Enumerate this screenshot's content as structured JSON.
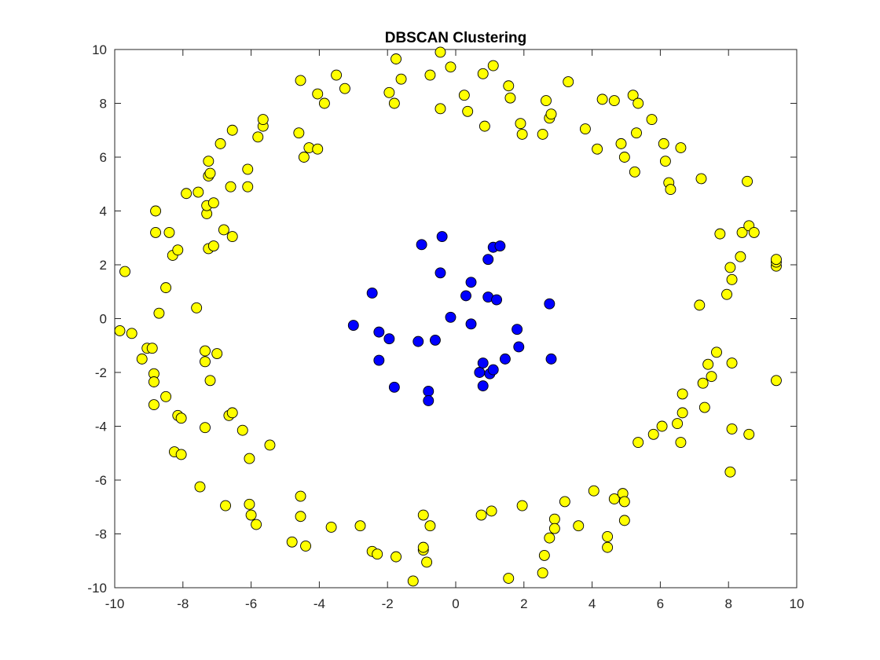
{
  "chart_data": {
    "type": "scatter",
    "title": "DBSCAN Clustering",
    "xlabel": "",
    "ylabel": "",
    "xlim": [
      -10,
      10
    ],
    "ylim": [
      -10,
      10
    ],
    "xticks": [
      -10,
      -8,
      -6,
      -4,
      -2,
      0,
      2,
      4,
      6,
      8,
      10
    ],
    "yticks": [
      -10,
      -8,
      -6,
      -4,
      -2,
      0,
      2,
      4,
      6,
      8,
      10
    ],
    "grid": false,
    "legend": false,
    "series": [
      {
        "color": "#ffff00",
        "points": [
          [
            -9.7,
            1.75
          ],
          [
            -9.85,
            -0.45
          ],
          [
            -9.5,
            -0.55
          ],
          [
            -9.2,
            -1.5
          ],
          [
            -9.05,
            -1.1
          ],
          [
            -8.9,
            -1.1
          ],
          [
            -8.85,
            -2.05
          ],
          [
            -8.85,
            -2.35
          ],
          [
            -8.85,
            -3.2
          ],
          [
            -8.8,
            3.2
          ],
          [
            -8.8,
            4.0
          ],
          [
            -8.7,
            0.2
          ],
          [
            -8.5,
            1.15
          ],
          [
            -8.5,
            -2.9
          ],
          [
            -8.4,
            3.2
          ],
          [
            -8.3,
            2.35
          ],
          [
            -8.25,
            -4.95
          ],
          [
            -8.15,
            2.55
          ],
          [
            -8.15,
            -3.6
          ],
          [
            -8.05,
            -3.7
          ],
          [
            -8.05,
            -5.05
          ],
          [
            -7.9,
            4.65
          ],
          [
            -7.6,
            0.4
          ],
          [
            -7.55,
            4.7
          ],
          [
            -7.5,
            -6.25
          ],
          [
            -7.35,
            -1.2
          ],
          [
            -7.35,
            -1.6
          ],
          [
            -7.35,
            -4.05
          ],
          [
            -7.3,
            3.9
          ],
          [
            -7.3,
            4.2
          ],
          [
            -7.25,
            5.3
          ],
          [
            -7.25,
            5.85
          ],
          [
            -7.2,
            5.4
          ],
          [
            -7.25,
            2.6
          ],
          [
            -7.2,
            -2.3
          ],
          [
            -7.1,
            2.7
          ],
          [
            -7.1,
            4.3
          ],
          [
            -7.0,
            -1.3
          ],
          [
            -6.9,
            6.5
          ],
          [
            -6.8,
            3.3
          ],
          [
            -6.75,
            -6.95
          ],
          [
            -6.65,
            -3.6
          ],
          [
            -6.6,
            4.9
          ],
          [
            -6.55,
            7.0
          ],
          [
            -6.55,
            3.05
          ],
          [
            -6.55,
            -3.5
          ],
          [
            -6.25,
            -4.15
          ],
          [
            -6.1,
            5.55
          ],
          [
            -6.1,
            4.9
          ],
          [
            -6.05,
            -5.2
          ],
          [
            -6.05,
            -6.9
          ],
          [
            -6.0,
            -7.3
          ],
          [
            -5.85,
            -7.65
          ],
          [
            -5.8,
            6.75
          ],
          [
            -5.65,
            7.15
          ],
          [
            -5.65,
            7.4
          ],
          [
            -5.45,
            -4.7
          ],
          [
            -4.8,
            -8.3
          ],
          [
            -4.6,
            6.9
          ],
          [
            -4.55,
            8.85
          ],
          [
            -4.55,
            -6.6
          ],
          [
            -4.55,
            -7.35
          ],
          [
            -4.45,
            6.0
          ],
          [
            -4.4,
            -8.45
          ],
          [
            -4.3,
            6.35
          ],
          [
            -4.05,
            8.35
          ],
          [
            -4.05,
            6.3
          ],
          [
            -3.85,
            8.0
          ],
          [
            -3.65,
            -7.75
          ],
          [
            -3.5,
            9.05
          ],
          [
            -3.25,
            8.55
          ],
          [
            -2.8,
            -7.7
          ],
          [
            -2.45,
            -8.65
          ],
          [
            -2.3,
            -8.75
          ],
          [
            -1.95,
            8.4
          ],
          [
            -1.8,
            8.0
          ],
          [
            -1.75,
            9.65
          ],
          [
            -1.75,
            -8.85
          ],
          [
            -1.6,
            8.9
          ],
          [
            -1.25,
            -9.75
          ],
          [
            -0.95,
            -8.6
          ],
          [
            -0.95,
            -8.5
          ],
          [
            -0.95,
            -7.3
          ],
          [
            -0.85,
            -9.05
          ],
          [
            -0.75,
            9.05
          ],
          [
            -0.75,
            -7.7
          ],
          [
            -0.45,
            9.9
          ],
          [
            -0.45,
            7.8
          ],
          [
            -0.15,
            9.35
          ],
          [
            0.25,
            8.3
          ],
          [
            0.35,
            7.7
          ],
          [
            0.75,
            -7.3
          ],
          [
            0.8,
            9.1
          ],
          [
            0.85,
            7.15
          ],
          [
            1.05,
            -7.15
          ],
          [
            1.1,
            9.4
          ],
          [
            1.55,
            8.65
          ],
          [
            1.6,
            8.2
          ],
          [
            1.55,
            -9.65
          ],
          [
            1.9,
            7.25
          ],
          [
            1.95,
            6.85
          ],
          [
            1.95,
            -6.95
          ],
          [
            2.55,
            6.85
          ],
          [
            2.55,
            -9.45
          ],
          [
            2.6,
            -8.8
          ],
          [
            2.65,
            8.1
          ],
          [
            2.75,
            7.45
          ],
          [
            2.8,
            7.6
          ],
          [
            2.75,
            -8.15
          ],
          [
            2.9,
            -7.45
          ],
          [
            2.9,
            -7.8
          ],
          [
            3.2,
            -6.8
          ],
          [
            3.3,
            8.8
          ],
          [
            3.6,
            -7.7
          ],
          [
            3.8,
            7.05
          ],
          [
            4.05,
            -6.4
          ],
          [
            4.15,
            6.3
          ],
          [
            4.3,
            8.15
          ],
          [
            4.45,
            -8.1
          ],
          [
            4.45,
            -8.5
          ],
          [
            4.65,
            8.1
          ],
          [
            4.65,
            -6.7
          ],
          [
            4.85,
            6.5
          ],
          [
            4.95,
            6.0
          ],
          [
            4.9,
            -6.5
          ],
          [
            4.95,
            -6.8
          ],
          [
            4.95,
            -7.5
          ],
          [
            5.2,
            8.3
          ],
          [
            5.25,
            5.45
          ],
          [
            5.3,
            6.9
          ],
          [
            5.35,
            8.0
          ],
          [
            5.35,
            -4.6
          ],
          [
            5.75,
            7.4
          ],
          [
            5.8,
            -4.3
          ],
          [
            6.05,
            -4.0
          ],
          [
            6.1,
            6.5
          ],
          [
            6.15,
            5.85
          ],
          [
            6.25,
            5.05
          ],
          [
            6.3,
            4.8
          ],
          [
            6.5,
            -3.9
          ],
          [
            6.6,
            6.35
          ],
          [
            6.6,
            -4.6
          ],
          [
            6.65,
            -2.8
          ],
          [
            6.65,
            -3.5
          ],
          [
            7.2,
            5.2
          ],
          [
            7.15,
            0.5
          ],
          [
            7.25,
            -2.4
          ],
          [
            7.3,
            -3.3
          ],
          [
            7.4,
            -1.7
          ],
          [
            7.5,
            -2.15
          ],
          [
            7.65,
            -1.25
          ],
          [
            7.75,
            3.15
          ],
          [
            7.95,
            0.9
          ],
          [
            8.05,
            1.9
          ],
          [
            8.05,
            -5.7
          ],
          [
            8.1,
            1.45
          ],
          [
            8.1,
            -1.65
          ],
          [
            8.1,
            -4.1
          ],
          [
            8.35,
            2.3
          ],
          [
            8.4,
            3.2
          ],
          [
            8.55,
            5.1
          ],
          [
            8.6,
            3.45
          ],
          [
            8.6,
            -4.3
          ],
          [
            8.75,
            3.2
          ],
          [
            9.4,
            1.95
          ],
          [
            9.4,
            2.1
          ],
          [
            9.4,
            2.2
          ],
          [
            9.4,
            -2.3
          ]
        ]
      },
      {
        "color": "#0000ff",
        "points": [
          [
            -3.0,
            -0.25
          ],
          [
            -2.45,
            0.95
          ],
          [
            -2.25,
            -0.5
          ],
          [
            -2.25,
            -1.55
          ],
          [
            -1.95,
            -0.75
          ],
          [
            -1.8,
            -2.55
          ],
          [
            -1.1,
            -0.85
          ],
          [
            -1.0,
            2.75
          ],
          [
            -0.8,
            -2.7
          ],
          [
            -0.8,
            -3.05
          ],
          [
            -0.6,
            -0.8
          ],
          [
            -0.45,
            1.7
          ],
          [
            -0.4,
            3.05
          ],
          [
            -0.15,
            0.05
          ],
          [
            0.3,
            0.85
          ],
          [
            0.45,
            1.35
          ],
          [
            0.45,
            -0.2
          ],
          [
            0.7,
            -2.0
          ],
          [
            0.8,
            -1.65
          ],
          [
            0.8,
            -2.5
          ],
          [
            0.95,
            2.2
          ],
          [
            0.95,
            0.8
          ],
          [
            1.0,
            -2.05
          ],
          [
            1.1,
            -1.9
          ],
          [
            1.1,
            2.65
          ],
          [
            1.2,
            0.7
          ],
          [
            1.3,
            2.7
          ],
          [
            1.45,
            -1.5
          ],
          [
            1.8,
            -0.4
          ],
          [
            1.85,
            -1.05
          ],
          [
            2.75,
            0.55
          ],
          [
            2.8,
            -1.5
          ]
        ]
      }
    ]
  }
}
